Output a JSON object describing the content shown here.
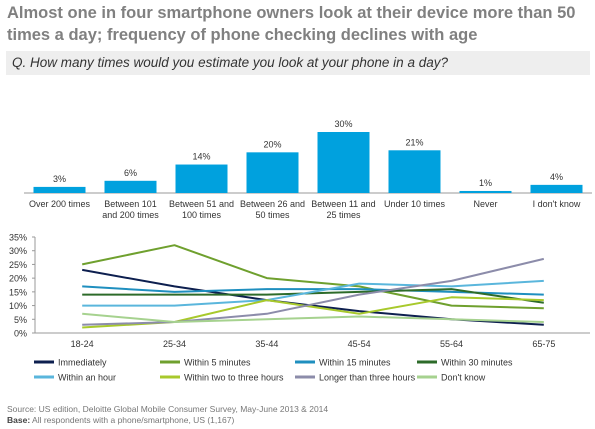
{
  "title": "Almost one in four smartphone owners look at their device more than 50 times a day; frequency of phone checking declines with age",
  "question": "Q. How many times would you estimate you look at your phone in a day?",
  "footer": {
    "source": "Source: US edition,  Deloitte Global Mobile Consumer Survey, May-June 2013 & 2014",
    "base_label": "Base:",
    "base_text": " All respondents with a phone/smartphone, US (1,167)"
  },
  "chart_data": [
    {
      "type": "bar",
      "categories": [
        "Over 200 times",
        "Between 101 and 200 times",
        "Between 51 and 100 times",
        "Between 26 and 50 times",
        "Between 11 and 25 times",
        "Under 10 times",
        "Never",
        "I don't know"
      ],
      "category_lines": [
        [
          "Over 200 times"
        ],
        [
          "Between 101",
          "and 200 times"
        ],
        [
          "Between 51 and",
          "100 times"
        ],
        [
          "Between 26 and",
          "50 times"
        ],
        [
          "Between 11 and",
          "25 times"
        ],
        [
          "Under 10 times"
        ],
        [
          "Never"
        ],
        [
          "I don't know"
        ]
      ],
      "values": [
        3,
        6,
        14,
        20,
        30,
        21,
        1,
        4
      ],
      "data_labels": [
        "3%",
        "6%",
        "14%",
        "20%",
        "30%",
        "21%",
        "1%",
        "4%"
      ],
      "bar_color": "#00a1de"
    },
    {
      "type": "line",
      "categories": [
        "18-24",
        "25-34",
        "35-44",
        "45-54",
        "55-64",
        "65-75"
      ],
      "yticks": [
        "35%",
        "30%",
        "25%",
        "20%",
        "15%",
        "10%",
        "5%",
        "0%"
      ],
      "ylim": [
        0,
        35
      ],
      "legend_position": "bottom",
      "series": [
        {
          "name": "Immediately",
          "color": "#0d1f4f",
          "values": [
            23,
            17,
            12,
            8,
            5,
            3
          ]
        },
        {
          "name": "Within 5 minutes",
          "color": "#6fa02e",
          "values": [
            25,
            32,
            20,
            17,
            10,
            9
          ]
        },
        {
          "name": "Within 15 minutes",
          "color": "#1f8fbf",
          "values": [
            17,
            15,
            16,
            16,
            15,
            14
          ]
        },
        {
          "name": "Within 30 minutes",
          "color": "#2d6b2a",
          "values": [
            14,
            14,
            14,
            15,
            16,
            11
          ]
        },
        {
          "name": "Within an hour",
          "color": "#5ab6dc",
          "values": [
            10,
            10,
            12,
            18,
            17,
            19
          ]
        },
        {
          "name": "Within two to three hours",
          "color": "#a8c92c",
          "values": [
            2,
            4,
            12,
            7,
            13,
            12
          ]
        },
        {
          "name": "Longer than three hours",
          "color": "#8c8caa",
          "values": [
            3,
            4,
            7,
            14,
            19,
            27
          ]
        },
        {
          "name": "Don't know",
          "color": "#a6d28f",
          "values": [
            7,
            4,
            5,
            6,
            5,
            4
          ]
        }
      ]
    }
  ]
}
